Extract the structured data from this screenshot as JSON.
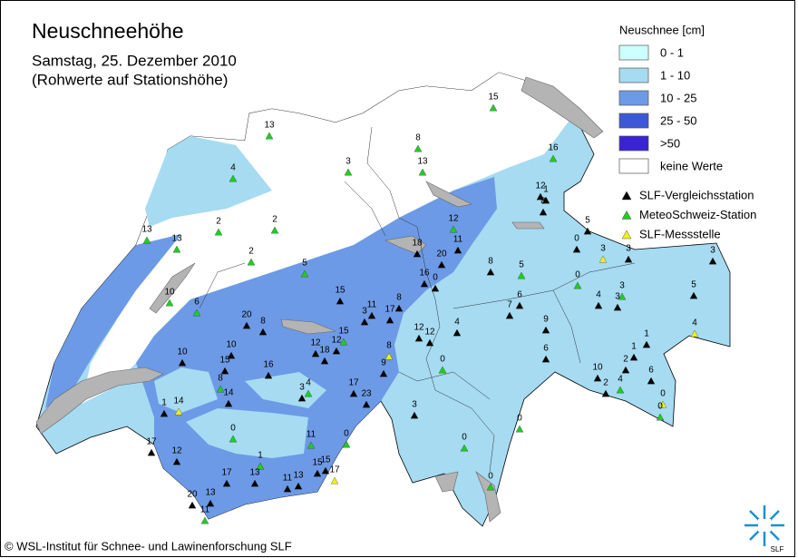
{
  "header": {
    "title": "Neuschneehöhe",
    "subtitle": "Samstag, 25. Dezember 2010",
    "note": "(Rohwerte auf Stationshöhe)"
  },
  "legend": {
    "title": "Neuschnee [cm]",
    "classes": [
      {
        "label": "0 - 1",
        "color": "#ccffff"
      },
      {
        "label": "1 - 10",
        "color": "#a6dbf2"
      },
      {
        "label": "10 - 25",
        "color": "#6d9ae6"
      },
      {
        "label": "25 - 50",
        "color": "#3c58d8"
      },
      {
        "label": ">50",
        "color": "#3a22d6"
      },
      {
        "label": "keine Werte",
        "color": "#ffffff"
      }
    ],
    "stations": [
      {
        "label": "SLF-Vergleichsstation",
        "color": "#000000"
      },
      {
        "label": "MeteoSchweiz-Station",
        "color": "#22cc22"
      },
      {
        "label": "SLF-Messstelle",
        "color": "#eeee22"
      }
    ]
  },
  "stations": [
    15,
    16,
    8,
    13,
    3,
    13,
    4,
    2,
    2,
    13,
    13,
    2,
    10,
    6,
    5,
    15,
    11,
    3,
    8,
    17,
    20,
    8,
    18,
    20,
    11,
    12,
    16,
    0,
    12,
    12,
    4,
    8,
    5,
    12,
    1,
    8,
    5,
    0,
    3,
    3,
    3,
    6,
    7,
    0,
    4,
    3,
    3,
    5,
    9,
    4,
    1,
    6,
    1,
    2,
    10,
    2,
    4,
    6,
    0,
    0,
    0,
    3,
    0,
    0,
    0,
    10,
    10,
    12,
    18,
    12,
    15,
    8,
    9,
    15,
    16,
    8,
    14,
    1,
    14,
    3,
    4,
    17,
    23,
    0,
    11,
    0,
    17,
    12,
    1,
    17,
    13,
    11,
    13,
    15,
    15,
    17,
    20,
    13,
    11
  ],
  "footer": "© WSL-Institut für Schnee- und Lawinenforschung SLF",
  "logo": "SLF"
}
